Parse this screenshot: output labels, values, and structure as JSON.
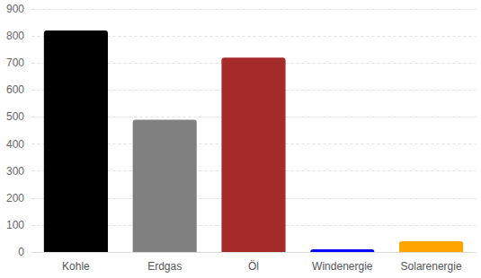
{
  "chart_data": {
    "type": "bar",
    "categories": [
      "Kohle",
      "Erdgas",
      "Öl",
      "Windenergie",
      "Solarenergie"
    ],
    "values": [
      820,
      490,
      720,
      10,
      40
    ],
    "colors": [
      "#000000",
      "#808080",
      "#a52a2a",
      "#0000ff",
      "#ffa500"
    ],
    "ylim": [
      0,
      900
    ],
    "yticks": [
      0,
      100,
      200,
      300,
      400,
      500,
      600,
      700,
      800,
      900
    ],
    "grid": true
  }
}
